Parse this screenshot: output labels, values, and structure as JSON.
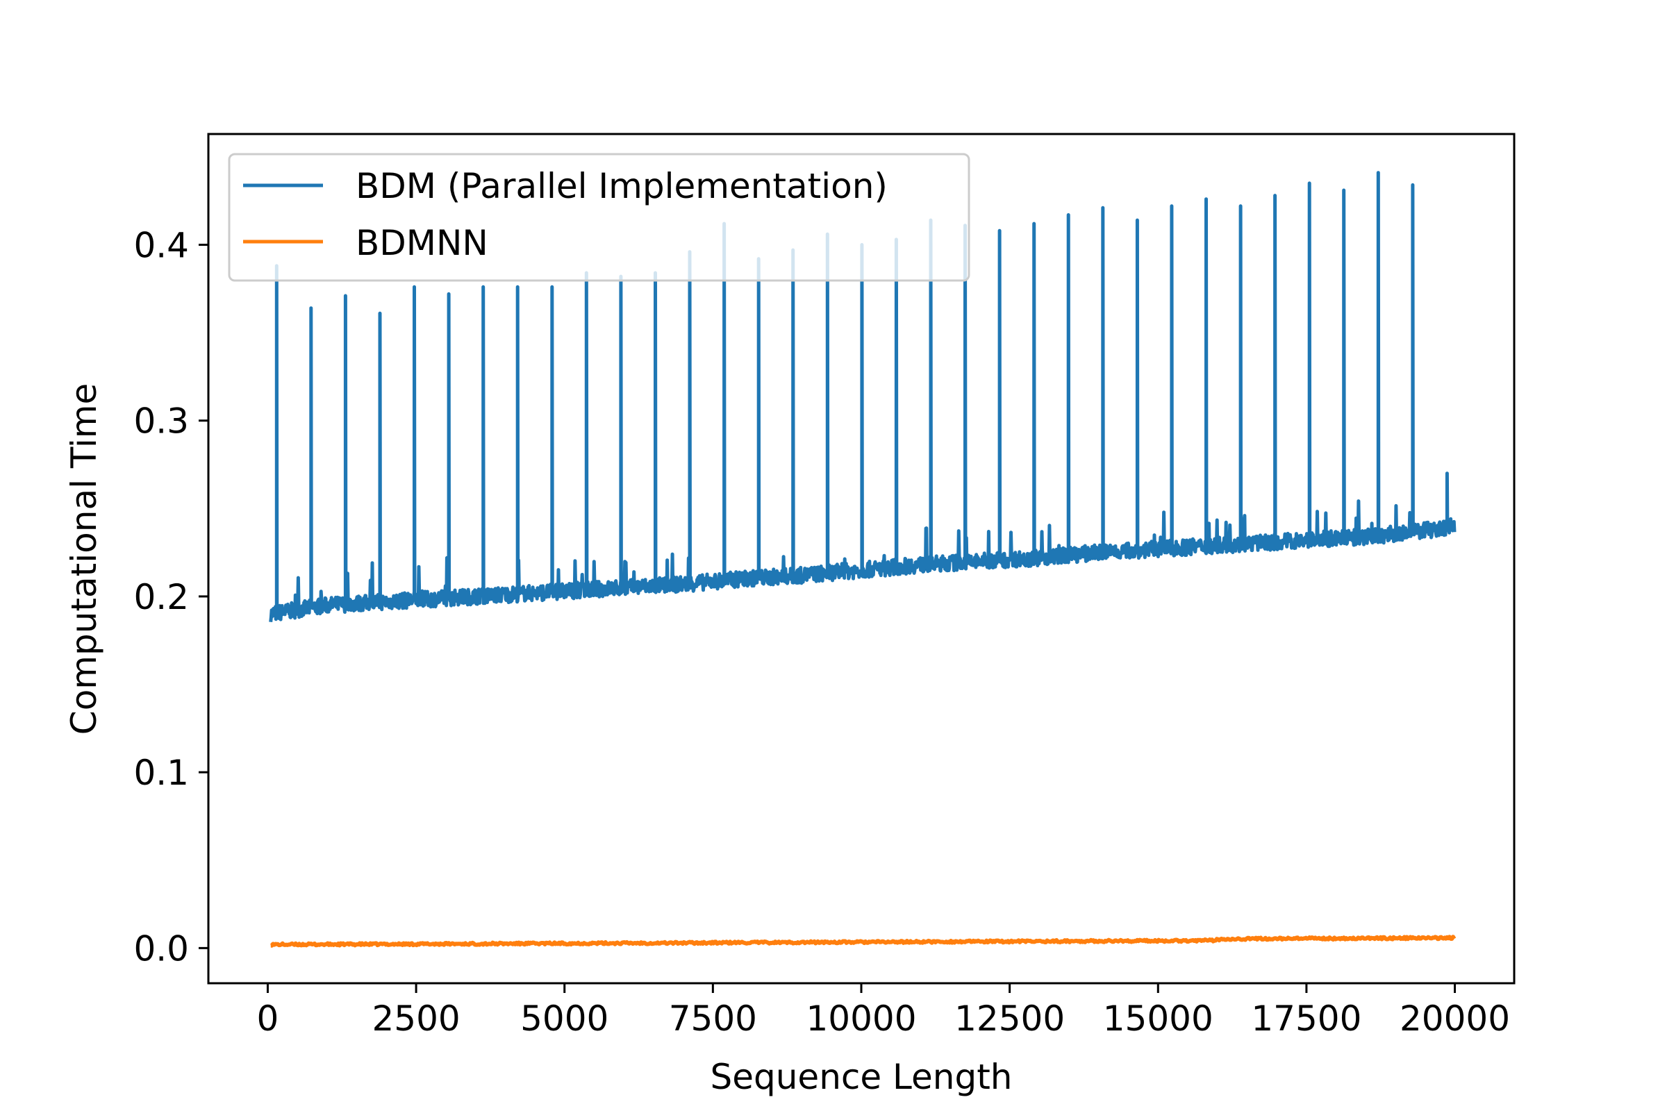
{
  "chart_data": {
    "type": "line",
    "title": "",
    "xlabel": "Sequence Length",
    "ylabel": "Computational Time",
    "xlim": [
      -1000,
      21000
    ],
    "ylim": [
      -0.02,
      0.463
    ],
    "x_ticks": [
      0,
      2500,
      5000,
      7500,
      10000,
      12500,
      15000,
      17500,
      20000
    ],
    "x_tick_labels": [
      "0",
      "2500",
      "5000",
      "7500",
      "10000",
      "12500",
      "15000",
      "17500",
      "20000"
    ],
    "y_ticks": [
      0.0,
      0.1,
      0.2,
      0.3,
      0.4
    ],
    "y_tick_labels": [
      "0.0",
      "0.1",
      "0.2",
      "0.3",
      "0.4"
    ],
    "grid": false,
    "legend_position": "top-left",
    "series": [
      {
        "name": "BDM (Parallel Implementation)",
        "color": "#1f77b4",
        "x": [
          50,
          1000,
          2000,
          3000,
          4000,
          5000,
          6000,
          7000,
          8000,
          9000,
          10000,
          11000,
          12000,
          13000,
          14000,
          15000,
          16000,
          17000,
          18000,
          19000,
          20000
        ],
        "y": [
          0.19,
          0.195,
          0.197,
          0.199,
          0.201,
          0.203,
          0.205,
          0.207,
          0.21,
          0.212,
          0.215,
          0.218,
          0.22,
          0.222,
          0.225,
          0.227,
          0.229,
          0.231,
          0.233,
          0.235,
          0.24
        ],
        "spikes": [
          {
            "x": 150,
            "y": 0.388
          },
          {
            "x": 730,
            "y": 0.364
          },
          {
            "x": 1310,
            "y": 0.371
          },
          {
            "x": 1890,
            "y": 0.361
          },
          {
            "x": 2470,
            "y": 0.376
          },
          {
            "x": 3050,
            "y": 0.372
          },
          {
            "x": 3630,
            "y": 0.376
          },
          {
            "x": 4210,
            "y": 0.376
          },
          {
            "x": 4790,
            "y": 0.376
          },
          {
            "x": 5370,
            "y": 0.384
          },
          {
            "x": 5950,
            "y": 0.382
          },
          {
            "x": 6530,
            "y": 0.384
          },
          {
            "x": 7110,
            "y": 0.396
          },
          {
            "x": 7690,
            "y": 0.412
          },
          {
            "x": 8270,
            "y": 0.392
          },
          {
            "x": 8850,
            "y": 0.397
          },
          {
            "x": 9430,
            "y": 0.406
          },
          {
            "x": 10010,
            "y": 0.4
          },
          {
            "x": 10590,
            "y": 0.403
          },
          {
            "x": 11170,
            "y": 0.414
          },
          {
            "x": 11750,
            "y": 0.411
          },
          {
            "x": 12330,
            "y": 0.408
          },
          {
            "x": 12910,
            "y": 0.412
          },
          {
            "x": 13490,
            "y": 0.417
          },
          {
            "x": 14070,
            "y": 0.421
          },
          {
            "x": 14650,
            "y": 0.414
          },
          {
            "x": 15230,
            "y": 0.422
          },
          {
            "x": 15810,
            "y": 0.426
          },
          {
            "x": 16390,
            "y": 0.422
          },
          {
            "x": 16970,
            "y": 0.428
          },
          {
            "x": 17550,
            "y": 0.435
          },
          {
            "x": 18130,
            "y": 0.431
          },
          {
            "x": 18710,
            "y": 0.441
          },
          {
            "x": 19290,
            "y": 0.434
          },
          {
            "x": 19870,
            "y": 0.27
          }
        ]
      },
      {
        "name": "BDMNN",
        "color": "#ff7f0e",
        "x": [
          50,
          2000,
          4000,
          6000,
          8000,
          10000,
          12000,
          14000,
          15900,
          16100,
          18000,
          20000
        ],
        "y": [
          0.002,
          0.0022,
          0.0025,
          0.0028,
          0.0031,
          0.0034,
          0.0037,
          0.004,
          0.0043,
          0.0052,
          0.0055,
          0.0058
        ]
      }
    ]
  }
}
